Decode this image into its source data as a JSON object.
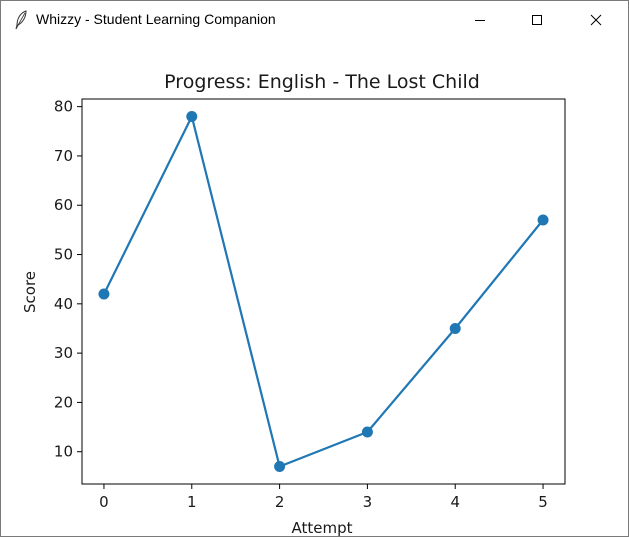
{
  "window": {
    "title": "Whizzy - Student Learning Companion",
    "icon": "feather-icon",
    "controls": [
      "minimize-icon",
      "maximize-icon",
      "close-icon"
    ]
  },
  "chart_data": {
    "type": "line",
    "title": "Progress: English - The Lost Child",
    "xlabel": "Attempt",
    "ylabel": "Score",
    "x": [
      0,
      1,
      2,
      3,
      4,
      5
    ],
    "series": [
      {
        "values": [
          42,
          78,
          7,
          14,
          35,
          57
        ],
        "color": "#1f77b4"
      }
    ],
    "x_ticks": [
      "0",
      "1",
      "2",
      "3",
      "4",
      "5"
    ],
    "y_ticks": [
      "10",
      "20",
      "30",
      "40",
      "50",
      "60",
      "70",
      "80"
    ],
    "xlim": [
      -0.25,
      5.25
    ],
    "ylim": [
      3.45,
      81.55
    ],
    "grid": false,
    "markers": "circle"
  }
}
